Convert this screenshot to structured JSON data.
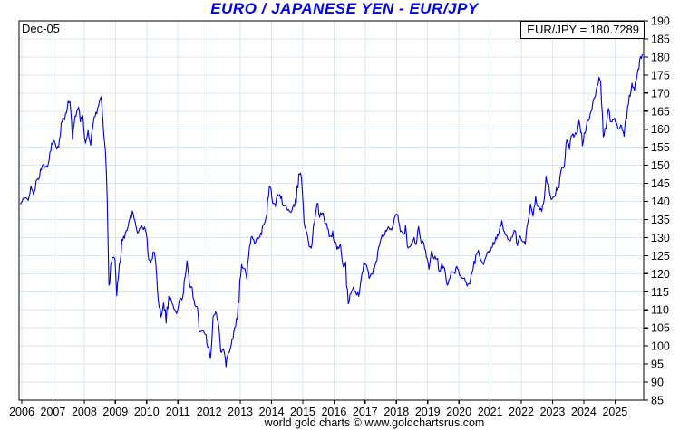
{
  "header": {
    "title": "EURO / JAPANESE YEN - EUR/JPY",
    "title_color": "#0000ee"
  },
  "overlays": {
    "start_label": "Dec-05",
    "quote_label": "EUR/JPY = 180.7289"
  },
  "footer": {
    "credit": "world gold charts © www.goldchartsrus.com"
  },
  "chart_data": {
    "type": "line",
    "title": "EURO / JAPANESE YEN - EUR/JPY",
    "ylabel": "",
    "xlabel": "",
    "ylim": [
      85,
      190
    ],
    "y_tick_step": 5,
    "y_ticks": [
      190,
      185,
      180,
      175,
      170,
      165,
      160,
      155,
      150,
      145,
      140,
      135,
      130,
      125,
      120,
      115,
      110,
      105,
      100,
      95,
      90,
      85
    ],
    "x_ticks": [
      2006,
      2007,
      2008,
      2009,
      2010,
      2011,
      2012,
      2013,
      2014,
      2015,
      2016,
      2017,
      2018,
      2019,
      2020,
      2021,
      2022,
      2023,
      2024,
      2025
    ],
    "grid": true,
    "legend_position": "none",
    "line_color": "#0000dd",
    "grid_color": "#dbe7f5",
    "axis_color": "#000000",
    "current_value": 180.7289,
    "series": [
      {
        "name": "EUR/JPY",
        "frequency": "monthly",
        "start_month": "2005-12",
        "end_month": "2025-11",
        "values": [
          139.2,
          140.4,
          140.8,
          141.1,
          143.6,
          142.2,
          145.2,
          146.2,
          149.2,
          149.9,
          149.6,
          151.3,
          156.2,
          156.7,
          153.9,
          156.3,
          162.5,
          163.5,
          166.3,
          168.5,
          156.9,
          163.4,
          166.5,
          162.4,
          164.0,
          156.7,
          158.7,
          156.0,
          162.5,
          164.1,
          166.3,
          169.0,
          161.0,
          149.7,
          116.5,
          123.0,
          126.5,
          114.0,
          121.2,
          129.5,
          130.1,
          132.8,
          135.2,
          136.6,
          134.4,
          131.2,
          133.3,
          132.3,
          132.9,
          126.0,
          122.4,
          125.7,
          125.2,
          112.6,
          108.5,
          112.3,
          107.8,
          113.5,
          112.8,
          110.3,
          108.6,
          112.4,
          113.0,
          117.3,
          122.4,
          116.6,
          116.5,
          111.1,
          110.2,
          103.5,
          104.8,
          103.9,
          100.2,
          97.9,
          107.3,
          109.7,
          106.1,
          98.4,
          100.6,
          94.9,
          98.3,
          100.4,
          103.6,
          106.3,
          113.6,
          122.2,
          121.1,
          120.1,
          127.7,
          130.9,
          128.4,
          130.1,
          129.7,
          132.6,
          133.9,
          139.2,
          144.7,
          139.0,
          139.4,
          142.1,
          141.6,
          138.6,
          138.8,
          137.6,
          136.6,
          138.4,
          140.7,
          147.1,
          148.8,
          133.6,
          131.9,
          128.0,
          127.0,
          134.9,
          140.0,
          135.9,
          137.0,
          134.2,
          132.9,
          130.0,
          131.2,
          128.3,
          126.8,
          127.9,
          122.2,
          121.9,
          112.0,
          114.7,
          115.7,
          113.9,
          114.6,
          119.2,
          123.0,
          121.7,
          119.2,
          119.5,
          121.5,
          124.6,
          128.0,
          130.3,
          130.7,
          132.8,
          131.7,
          133.2,
          135.3,
          136.7,
          132.3,
          130.5,
          132.2,
          126.4,
          127.8,
          129.9,
          128.2,
          132.1,
          128.5,
          128.8,
          125.4,
          122.1,
          126.6,
          124.4,
          124.7,
          119.9,
          122.5,
          120.7,
          116.6,
          118.2,
          120.8,
          120.5,
          121.9,
          119.6,
          118.3,
          118.7,
          116.6,
          117.6,
          121.8,
          124.6,
          125.9,
          123.6,
          122.1,
          124.5,
          126.2,
          126.6,
          128.6,
          129.9,
          132.1,
          133.9,
          131.7,
          130.1,
          129.4,
          129.9,
          131.9,
          128.3,
          130.1,
          128.8,
          128.5,
          134.3,
          138.9,
          136.7,
          141.5,
          138.3,
          137.4,
          139.1,
          146.5,
          144.0,
          140.3,
          141.2,
          143.3,
          143.9,
          149.6,
          149.6,
          157.1,
          155.4,
          158.6,
          157.9,
          159.5,
          162.5,
          156.4,
          159.8,
          162.6,
          163.2,
          166.9,
          169.7,
          173.0,
          174.9,
          158.0,
          160.5,
          164.9,
          161.8,
          163.4,
          161.3,
          159.9,
          161.0,
          158.8,
          163.3,
          168.6,
          172.2,
          171.5,
          174.6,
          178.9,
          180.73
        ]
      }
    ]
  }
}
